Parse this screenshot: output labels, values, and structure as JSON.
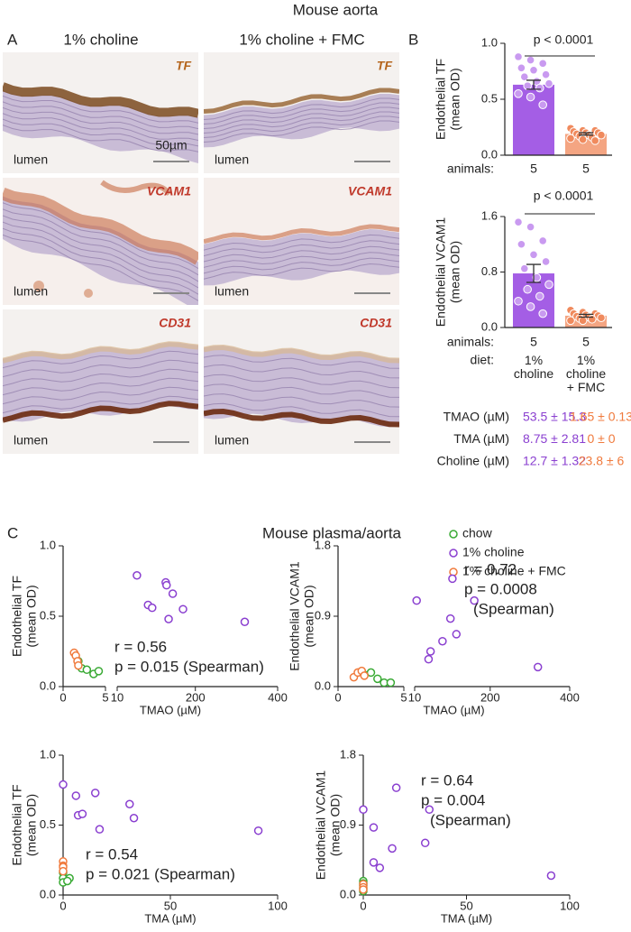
{
  "figure": {
    "label_a": "A",
    "title_a": "Mouse aorta",
    "columns": [
      "1% choline",
      "1% choline + FMC"
    ],
    "stains": [
      "TF",
      "VCAM1",
      "CD31"
    ],
    "lumen": "lumen",
    "scale_bar": "50µm",
    "label_b": "B",
    "label_c": "C",
    "title_c": "Mouse plasma/aorta"
  },
  "table": {
    "colors": [
      "#8a3fd0",
      "#f07a3c"
    ],
    "rows": [
      [
        "TMAO (µM)",
        "53.5 ± 15.3",
        "1.65 ± 0.13"
      ],
      [
        "TMA (µM)",
        "8.75 ± 2.81",
        "0 ± 0"
      ],
      [
        "Choline (µM)",
        "12.7 ± 1.32",
        "23.8 ± 6"
      ]
    ]
  },
  "chart_data": [
    {
      "type": "bar",
      "ylabel": [
        "Endothelial TF",
        "(mean OD)"
      ],
      "ylim": [
        0,
        1
      ],
      "yticks": [
        {
          "value": 0,
          "label": "0.0"
        },
        {
          "value": 0.5,
          "label": "0.5"
        },
        {
          "value": 1,
          "label": "1.0"
        }
      ],
      "values": [
        0.63,
        0.19
      ],
      "errors": [
        0.04,
        0.01
      ],
      "colors": [
        "#a45ee5",
        "#f4a582"
      ],
      "point_colors": [
        "#c99af0",
        "#f08a5d"
      ],
      "points": [
        [
          0.88,
          0.85,
          0.82,
          0.78,
          0.76,
          0.72,
          0.7,
          0.66,
          0.64,
          0.62,
          0.6,
          0.55,
          0.52,
          0.45
        ],
        [
          0.24,
          0.22,
          0.22,
          0.21,
          0.2,
          0.2,
          0.19,
          0.18,
          0.18,
          0.17,
          0.16,
          0.15,
          0.14,
          0.13
        ]
      ],
      "annotation": "p < 0.0001",
      "group_label": "animals:",
      "animals": [
        5,
        5
      ]
    },
    {
      "type": "bar",
      "ylabel": [
        "Endothelial VCAM1",
        "(mean OD)"
      ],
      "ylim": [
        0,
        1.6
      ],
      "yticks": [
        {
          "value": 0,
          "label": "0.0"
        },
        0.8,
        1.6
      ],
      "values": [
        0.78,
        0.17
      ],
      "errors": [
        0.13,
        0.02
      ],
      "colors": [
        "#a45ee5",
        "#f4a582"
      ],
      "point_colors": [
        "#c99af0",
        "#f08a5d"
      ],
      "points": [
        [
          1.52,
          1.45,
          1.25,
          1.2,
          1.05,
          0.95,
          0.85,
          0.72,
          0.62,
          0.55,
          0.45,
          0.38,
          0.3,
          0.2
        ],
        [
          0.25,
          0.22,
          0.2,
          0.2,
          0.18,
          0.17,
          0.16,
          0.15,
          0.14,
          0.13,
          0.12,
          0.1,
          0.1
        ]
      ],
      "annotation": "p < 0.0001",
      "group_label": "animals:",
      "animals": [
        5,
        5
      ],
      "diet_label": "diet:",
      "categories": [
        "1% choline",
        "1% choline + FMC"
      ]
    },
    {
      "type": "scatter",
      "ylabel": [
        "Endothelial TF",
        "(mean OD)"
      ],
      "xlabel": "TMAO (µM)",
      "xlim": [
        0,
        400
      ],
      "xbreak": [
        5,
        10
      ],
      "xticks": [
        0,
        5,
        10,
        200,
        400
      ],
      "ylim": [
        0,
        1
      ],
      "yticks": [
        {
          "value": 0,
          "label": "0.0"
        },
        {
          "value": 0.5,
          "label": "0.5"
        },
        {
          "value": 1,
          "label": "1.0"
        }
      ],
      "annotation": [
        "r = 0.56",
        "p = 0.015 (Spearman)"
      ],
      "series": [
        {
          "name": "chow",
          "color": "#3aaa35",
          "x": [
            1.8,
            2.2,
            2.8,
            3.6,
            4.2
          ],
          "values": [
            0.18,
            0.13,
            0.12,
            0.09,
            0.11
          ]
        },
        {
          "name": "1% choline",
          "color": "#8a3fd0",
          "x": [
            58,
            85,
            95,
            128,
            130,
            135,
            145,
            170,
            320
          ],
          "values": [
            0.79,
            0.58,
            0.56,
            0.74,
            0.72,
            0.48,
            0.66,
            0.55,
            0.46
          ]
        },
        {
          "name": "1% choline + FMC",
          "color": "#f07a3c",
          "x": [
            1.3,
            1.5,
            1.7,
            1.8
          ],
          "values": [
            0.24,
            0.22,
            0.18,
            0.15
          ]
        }
      ]
    },
    {
      "type": "scatter",
      "ylabel": [
        "Endothelial VCAM1",
        "(mean OD)"
      ],
      "xlabel": "TMAO (µM)",
      "xlim": [
        0,
        400
      ],
      "xbreak": [
        5,
        10
      ],
      "xticks": [
        0,
        5,
        10,
        200,
        400
      ],
      "ylim": [
        0,
        1.8
      ],
      "yticks": [
        {
          "value": 0,
          "label": "0.0"
        },
        0.9,
        1.8
      ],
      "annotation": [
        "r = 0.72",
        "p = 0.0008",
        "(Spearman)"
      ],
      "series": [
        {
          "color": "#3aaa35",
          "x": [
            2,
            2.5,
            3,
            3.5,
            4
          ],
          "values": [
            0.15,
            0.18,
            0.1,
            0.05,
            0.05
          ]
        },
        {
          "color": "#8a3fd0",
          "x": [
            15,
            45,
            50,
            80,
            100,
            105,
            115,
            160,
            320
          ],
          "values": [
            1.1,
            0.35,
            0.45,
            0.58,
            0.87,
            1.38,
            0.67,
            1.1,
            0.25
          ]
        },
        {
          "color": "#f07a3c",
          "x": [
            1.2,
            1.5,
            1.8,
            2
          ],
          "values": [
            0.12,
            0.18,
            0.2,
            0.14
          ]
        }
      ]
    },
    {
      "type": "scatter",
      "ylabel": [
        "Endothelial TF",
        "(mean OD)"
      ],
      "xlabel": "TMA (µM)",
      "xlim": [
        0,
        100
      ],
      "xticks": [
        0,
        50,
        100
      ],
      "ylim": [
        0,
        1
      ],
      "yticks": [
        {
          "value": 0,
          "label": "0.0"
        },
        {
          "value": 0.5,
          "label": "0.5"
        },
        {
          "value": 1,
          "label": "1.0"
        }
      ],
      "annotation": [
        "r = 0.54",
        "p = 0.021 (Spearman)"
      ],
      "series": [
        {
          "color": "#3aaa35",
          "x": [
            0,
            0,
            0,
            3,
            2
          ],
          "values": [
            0.16,
            0.12,
            0.09,
            0.12,
            0.1
          ]
        },
        {
          "color": "#8a3fd0",
          "x": [
            0,
            6,
            7,
            9,
            15,
            17,
            31,
            33,
            91
          ],
          "values": [
            0.79,
            0.71,
            0.57,
            0.58,
            0.73,
            0.47,
            0.65,
            0.55,
            0.46
          ]
        },
        {
          "color": "#f07a3c",
          "x": [
            0,
            0,
            0,
            0
          ],
          "values": [
            0.24,
            0.21,
            0.2,
            0.17
          ]
        }
      ]
    },
    {
      "type": "scatter",
      "ylabel": [
        "Endothelial VCAM1",
        "(mean OD)"
      ],
      "xlabel": "TMA (µM)",
      "xlim": [
        0,
        100
      ],
      "xticks": [
        0,
        50,
        100
      ],
      "ylim": [
        0,
        1.8
      ],
      "yticks": [
        {
          "value": 0,
          "label": "0.0"
        },
        0.9,
        1.8
      ],
      "annotation": [
        "r = 0.64",
        "p = 0.004",
        "(Spearman)"
      ],
      "series": [
        {
          "color": "#3aaa35",
          "x": [
            0,
            0,
            0,
            0,
            0
          ],
          "values": [
            0.18,
            0.12,
            0.08,
            0.05,
            0.15
          ]
        },
        {
          "color": "#8a3fd0",
          "x": [
            0,
            5,
            5,
            8,
            14,
            16,
            30,
            32,
            91
          ],
          "values": [
            1.1,
            0.87,
            0.42,
            0.35,
            0.6,
            1.38,
            0.67,
            1.1,
            0.25
          ]
        },
        {
          "color": "#f07a3c",
          "x": [
            0,
            0,
            0
          ],
          "values": [
            0.14,
            0.1,
            0.07
          ]
        }
      ]
    }
  ]
}
